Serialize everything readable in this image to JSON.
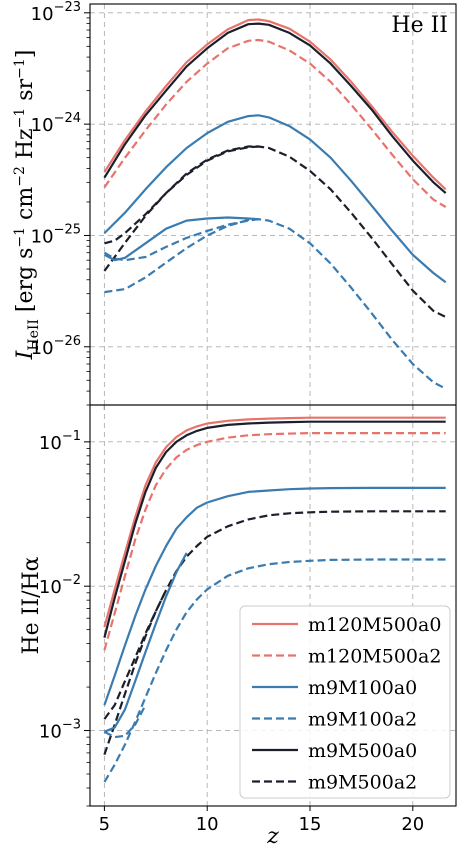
{
  "chart_data": [
    {
      "type": "line",
      "panel": "top",
      "annotation": "He II",
      "ylabel": "I_HeII [erg s^-1 cm^-2 Hz^-1 sr^-1]",
      "yscale": "log",
      "ylim": [
        3e-27,
        1.2e-23
      ],
      "xlim": [
        4.3,
        22.1
      ],
      "grid": true,
      "yticks": [
        {
          "value": 1e-23,
          "mant": "10",
          "exp": "−23"
        },
        {
          "value": 1e-24,
          "mant": "10",
          "exp": "−24"
        },
        {
          "value": 1e-25,
          "mant": "10",
          "exp": "−25"
        },
        {
          "value": 1e-26,
          "mant": "10",
          "exp": "−26"
        }
      ],
      "x": [
        5,
        6,
        7,
        8,
        9,
        10,
        11,
        12,
        12.5,
        13,
        14,
        15,
        16,
        17,
        18,
        19,
        20,
        21,
        21.6
      ],
      "series": [
        {
          "name": "m120M500a0",
          "color": "#e8736c",
          "dash": "solid",
          "values": [
            3.7e-25,
            7.2e-25,
            1.3e-24,
            2.2e-24,
            3.6e-24,
            5.2e-24,
            7.1e-24,
            8.6e-24,
            8.7e-24,
            8.4e-24,
            7.2e-24,
            5.5e-24,
            3.8e-24,
            2.4e-24,
            1.45e-24,
            8.5e-25,
            5.2e-25,
            3.3e-25,
            2.6e-25
          ]
        },
        {
          "name": "m120M500a2",
          "color": "#e8736c",
          "dash": "dashed",
          "values": [
            2.7e-25,
            5e-25,
            8.8e-25,
            1.5e-24,
            2.4e-24,
            3.5e-24,
            4.8e-24,
            5.6e-24,
            5.7e-24,
            5.5e-24,
            4.6e-24,
            3.5e-24,
            2.4e-24,
            1.5e-24,
            9e-25,
            5.3e-25,
            3.2e-25,
            2.1e-25,
            1.8e-25
          ]
        },
        {
          "name": "m9M100a0",
          "color": "#3a7bb0",
          "dash": "solid",
          "values": [
            1.05e-25,
            1.6e-25,
            2.6e-25,
            4.1e-25,
            6.1e-25,
            8.3e-25,
            1.05e-24,
            1.18e-24,
            1.2e-24,
            1.15e-24,
            9.6e-25,
            7.3e-25,
            5e-25,
            3.1e-25,
            1.85e-25,
            1.1e-25,
            6.7e-26,
            4.6e-26,
            3.8e-26
          ]
        },
        {
          "name": "m9M100a2",
          "color": "#3a7bb0",
          "dash": "dashed",
          "values": [
            3.1e-26,
            3.3e-26,
            4.2e-26,
            5.7e-26,
            7.7e-26,
            1e-25,
            1.22e-25,
            1.38e-25,
            1.4e-25,
            1.36e-25,
            1.15e-25,
            8.5e-26,
            5.6e-26,
            3.4e-26,
            2e-26,
            1.15e-26,
            7e-27,
            4.8e-27,
            4.2e-27
          ]
        },
        {
          "name": "m9M500a0",
          "color": "#1b1f2a",
          "dash": "solid",
          "values": [
            3.3e-25,
            6.6e-25,
            1.2e-24,
            2e-24,
            3.3e-24,
            4.8e-24,
            6.6e-24,
            7.9e-24,
            8e-24,
            7.8e-24,
            6.6e-24,
            5.1e-24,
            3.5e-24,
            2.2e-24,
            1.35e-24,
            7.8e-25,
            4.7e-25,
            3e-25,
            2.4e-25
          ]
        },
        {
          "name": "m9M500a2",
          "color": "#1b1f2a",
          "dash": "dashed",
          "values": [
            4.8e-26,
            8.6e-26,
            1.5e-25,
            2.4e-25,
            3.6e-25,
            4.8e-25,
            5.8e-25,
            6.3e-25,
            6.3e-25,
            6.1e-25,
            5.1e-25,
            3.8e-25,
            2.6e-25,
            1.6e-25,
            9.5e-26,
            5.5e-26,
            3.2e-26,
            2.1e-26,
            1.85e-26
          ]
        }
      ],
      "extra_series": [
        {
          "of": "m9M100a0",
          "color": "#3a7bb0",
          "dash": "solid",
          "x": [
            5,
            5.5,
            6,
            7,
            8,
            9,
            10,
            11,
            12,
            12.5
          ],
          "values": [
            6.7e-26,
            6e-26,
            6.3e-26,
            8.5e-26,
            1.15e-25,
            1.36e-25,
            1.42e-25,
            1.45e-25,
            1.42e-25,
            1.4e-25
          ]
        },
        {
          "of": "m9M500a2",
          "color": "#1b1f2a",
          "dash": "dashed",
          "x": [
            5,
            5.5,
            6,
            7,
            8,
            9,
            10,
            11,
            12,
            12.5
          ],
          "values": [
            8.5e-26,
            9e-26,
            1.05e-25,
            1.55e-25,
            2.4e-25,
            3.5e-25,
            4.7e-25,
            5.7e-25,
            6.2e-25,
            6.3e-25
          ]
        },
        {
          "of": "m9M100a2",
          "color": "#3a7bb0",
          "dash": "dashed",
          "x": [
            5,
            5.5,
            6,
            7,
            8,
            9,
            10,
            11,
            12,
            12.5
          ],
          "values": [
            7e-26,
            6.2e-26,
            6e-26,
            6.4e-26,
            7.9e-26,
            9.5e-26,
            1.1e-25,
            1.25e-25,
            1.36e-25,
            1.4e-25
          ]
        }
      ]
    },
    {
      "type": "line",
      "panel": "bottom",
      "ylabel": "He II/Hα",
      "yscale": "log",
      "ylim": [
        0.0003,
        0.18
      ],
      "xlim": [
        4.3,
        22.1
      ],
      "grid": true,
      "xlabel": "z",
      "xticks": [
        5,
        10,
        15,
        20
      ],
      "yticks": [
        {
          "value": 0.1,
          "mant": "10",
          "exp": "−1"
        },
        {
          "value": 0.01,
          "mant": "10",
          "exp": "−2"
        },
        {
          "value": 0.001,
          "mant": "10",
          "exp": "−3"
        }
      ],
      "legend": "lower-right",
      "x": [
        5,
        5.5,
        6,
        6.5,
        7,
        7.5,
        8,
        8.5,
        9,
        9.5,
        10,
        11,
        12,
        13,
        14,
        15,
        16,
        18,
        20,
        21.6
      ],
      "series": [
        {
          "name": "m120M500a0",
          "color": "#e8736c",
          "dash": "solid",
          "values": [
            0.0052,
            0.0095,
            0.017,
            0.03,
            0.05,
            0.072,
            0.092,
            0.108,
            0.12,
            0.128,
            0.134,
            0.14,
            0.143,
            0.145,
            0.146,
            0.147,
            0.147,
            0.147,
            0.147,
            0.147
          ]
        },
        {
          "name": "m120M500a2",
          "color": "#e8736c",
          "dash": "dashed",
          "values": [
            0.0036,
            0.0065,
            0.0118,
            0.021,
            0.034,
            0.05,
            0.065,
            0.078,
            0.088,
            0.095,
            0.1,
            0.107,
            0.111,
            0.113,
            0.114,
            0.115,
            0.115,
            0.115,
            0.115,
            0.115
          ]
        },
        {
          "name": "m9M100a0",
          "color": "#3a7bb0",
          "dash": "solid",
          "values": [
            0.0015,
            0.0024,
            0.0039,
            0.0062,
            0.0095,
            0.0138,
            0.019,
            0.025,
            0.03,
            0.035,
            0.038,
            0.042,
            0.045,
            0.046,
            0.047,
            0.0475,
            0.0478,
            0.048,
            0.048,
            0.048
          ]
        },
        {
          "name": "m9M100a2",
          "color": "#3a7bb0",
          "dash": "dashed",
          "values": [
            0.00044,
            0.00058,
            0.0008,
            0.00115,
            0.0017,
            0.0025,
            0.0036,
            0.005,
            0.0066,
            0.0081,
            0.0095,
            0.0118,
            0.0133,
            0.0142,
            0.0147,
            0.015,
            0.0152,
            0.0153,
            0.0153,
            0.0153
          ]
        },
        {
          "name": "m9M500a0",
          "color": "#1b1f2a",
          "dash": "solid",
          "values": [
            0.0044,
            0.0083,
            0.015,
            0.027,
            0.045,
            0.066,
            0.085,
            0.1,
            0.111,
            0.119,
            0.125,
            0.131,
            0.134,
            0.136,
            0.137,
            0.138,
            0.138,
            0.138,
            0.138,
            0.138
          ]
        },
        {
          "name": "m9M500a2",
          "color": "#1b1f2a",
          "dash": "dashed",
          "values": [
            0.00068,
            0.0011,
            0.0018,
            0.0029,
            0.0045,
            0.0067,
            0.0094,
            0.0127,
            0.016,
            0.019,
            0.022,
            0.026,
            0.029,
            0.031,
            0.032,
            0.0325,
            0.0328,
            0.033,
            0.033,
            0.033
          ]
        }
      ],
      "extra_series": [
        {
          "of": "m9M100a0",
          "color": "#3a7bb0",
          "dash": "solid",
          "x": [
            5,
            5.5,
            6,
            6.5,
            7,
            7.5,
            8,
            8.5,
            9
          ],
          "values": [
            0.00098,
            0.00105,
            0.0014,
            0.0022,
            0.0035,
            0.0055,
            0.0085,
            0.0125,
            0.017
          ]
        },
        {
          "of": "m9M500a2",
          "color": "#1b1f2a",
          "dash": "dashed",
          "x": [
            5,
            5.5,
            6,
            6.5,
            7,
            7.5,
            8
          ],
          "values": [
            0.0012,
            0.0015,
            0.0022,
            0.0032,
            0.0047,
            0.0067,
            0.0094
          ]
        },
        {
          "of": "m9M100a2",
          "color": "#3a7bb0",
          "dash": "dashed",
          "x": [
            5,
            5.5,
            6,
            6.5,
            7
          ],
          "values": [
            0.00098,
            0.0009,
            0.00092,
            0.0011,
            0.0015
          ]
        }
      ]
    }
  ]
}
